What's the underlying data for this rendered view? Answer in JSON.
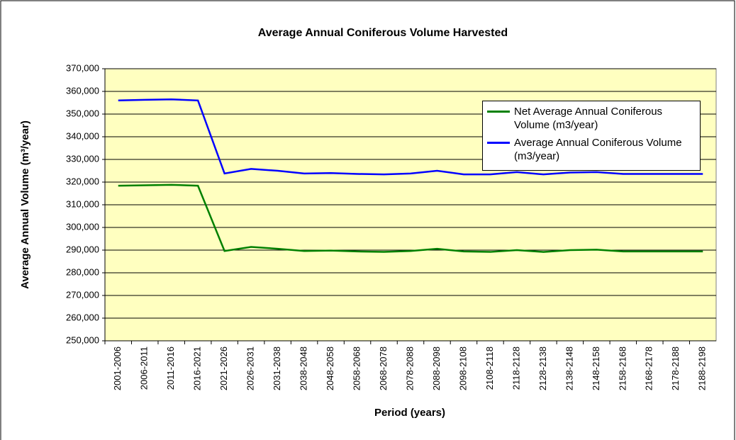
{
  "chart_data": {
    "type": "line",
    "title": "Average Annual Coniferous Volume Harvested",
    "x_label": "Period (years)",
    "y_label": "Average Annual Volume (m³/year)",
    "categories": [
      "2001-2006",
      "2006-2011",
      "2011-2016",
      "2016-2021",
      "2021-2026",
      "2026-2031",
      "2031-2038",
      "2038-2048",
      "2048-2058",
      "2058-2068",
      "2068-2078",
      "2078-2088",
      "2088-2098",
      "2098-2108",
      "2108-2118",
      "2118-2128",
      "2128-2138",
      "2138-2148",
      "2148-2158",
      "2158-2168",
      "2168-2178",
      "2178-2188",
      "2188-2198"
    ],
    "series": [
      {
        "name": "Net Average Annual Coniferous Volume (m3/year)",
        "color": "#008000",
        "values": [
          318400,
          318600,
          318800,
          318400,
          289600,
          291400,
          290600,
          289600,
          289800,
          289400,
          289200,
          289600,
          290600,
          289400,
          289200,
          290000,
          289200,
          290000,
          290200,
          289400,
          289400,
          289400,
          289400
        ]
      },
      {
        "name": "Average Annual Coniferous Volume (m3/year)",
        "color": "#0000ff",
        "values": [
          356000,
          356300,
          356500,
          356000,
          323800,
          325800,
          325000,
          323800,
          324000,
          323600,
          323400,
          323800,
          325000,
          323400,
          323400,
          324400,
          323400,
          324200,
          324400,
          323600,
          323600,
          323600,
          323600
        ]
      }
    ],
    "ylim": [
      250000,
      370000
    ],
    "yticks": [
      {
        "value": 250000,
        "label": "250,000"
      },
      {
        "value": 260000,
        "label": "260,000"
      },
      {
        "value": 270000,
        "label": "270,000"
      },
      {
        "value": 280000,
        "label": "280,000"
      },
      {
        "value": 290000,
        "label": "290,000"
      },
      {
        "value": 300000,
        "label": "300,000"
      },
      {
        "value": 310000,
        "label": "310,000"
      },
      {
        "value": 320000,
        "label": "320,000"
      },
      {
        "value": 330000,
        "label": "330,000"
      },
      {
        "value": 340000,
        "label": "340,000"
      },
      {
        "value": 350000,
        "label": "350,000"
      },
      {
        "value": 360000,
        "label": "360,000"
      },
      {
        "value": 370000,
        "label": "370,000"
      }
    ],
    "grid": true,
    "legend": "upper right",
    "plot_background": "#ffffc0"
  }
}
